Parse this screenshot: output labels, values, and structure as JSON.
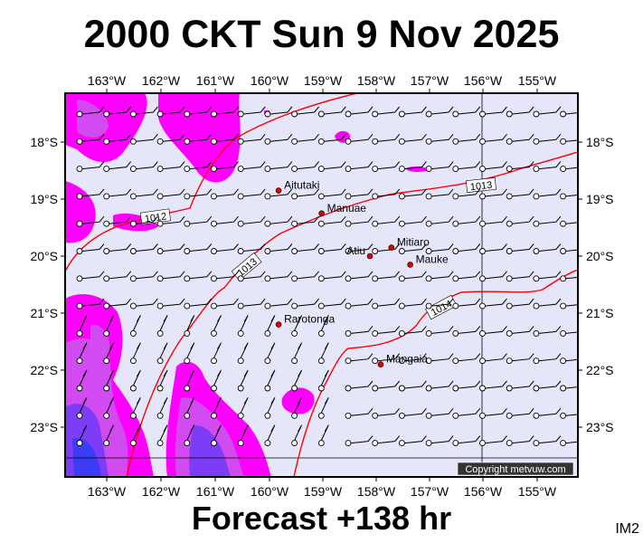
{
  "title": "2000 CKT Sun 9 Nov 2025",
  "footer": "Forecast +138 hr",
  "code": "IM2",
  "copyright": "Copyright metvuw.com",
  "colors": {
    "background": "#e6e6fb",
    "isobar": "#ff0000",
    "rain_light": "#ff00ff",
    "rain_medium": "#d24bf0",
    "rain_heavy": "#7d3cf5",
    "rain_extreme": "#3c3cf5"
  },
  "axes": {
    "lon_labels": [
      "163°W",
      "162°W",
      "161°W",
      "160°W",
      "159°W",
      "158°W",
      "157°W",
      "156°W",
      "155°W"
    ],
    "lat_labels": [
      "18°S",
      "19°S",
      "20°S",
      "21°S",
      "22°S",
      "23°S"
    ]
  },
  "places": [
    {
      "name": "Aitutaki",
      "lon": -159.8,
      "lat": -18.85
    },
    {
      "name": "Manuae",
      "lon": -159.0,
      "lat": -19.25
    },
    {
      "name": "Mitiaro",
      "lon": -157.7,
      "lat": -19.85
    },
    {
      "name": "Atiu",
      "lon": -158.1,
      "lat": -20.0
    },
    {
      "name": "Mauke",
      "lon": -157.35,
      "lat": -20.15
    },
    {
      "name": "Rarotonga",
      "lon": -159.8,
      "lat": -21.2
    },
    {
      "name": "Mangaia",
      "lon": -157.9,
      "lat": -21.9
    }
  ],
  "isobars": [
    {
      "label": "1012"
    },
    {
      "label": "1013"
    },
    {
      "label": "1013"
    },
    {
      "label": "1014"
    }
  ]
}
